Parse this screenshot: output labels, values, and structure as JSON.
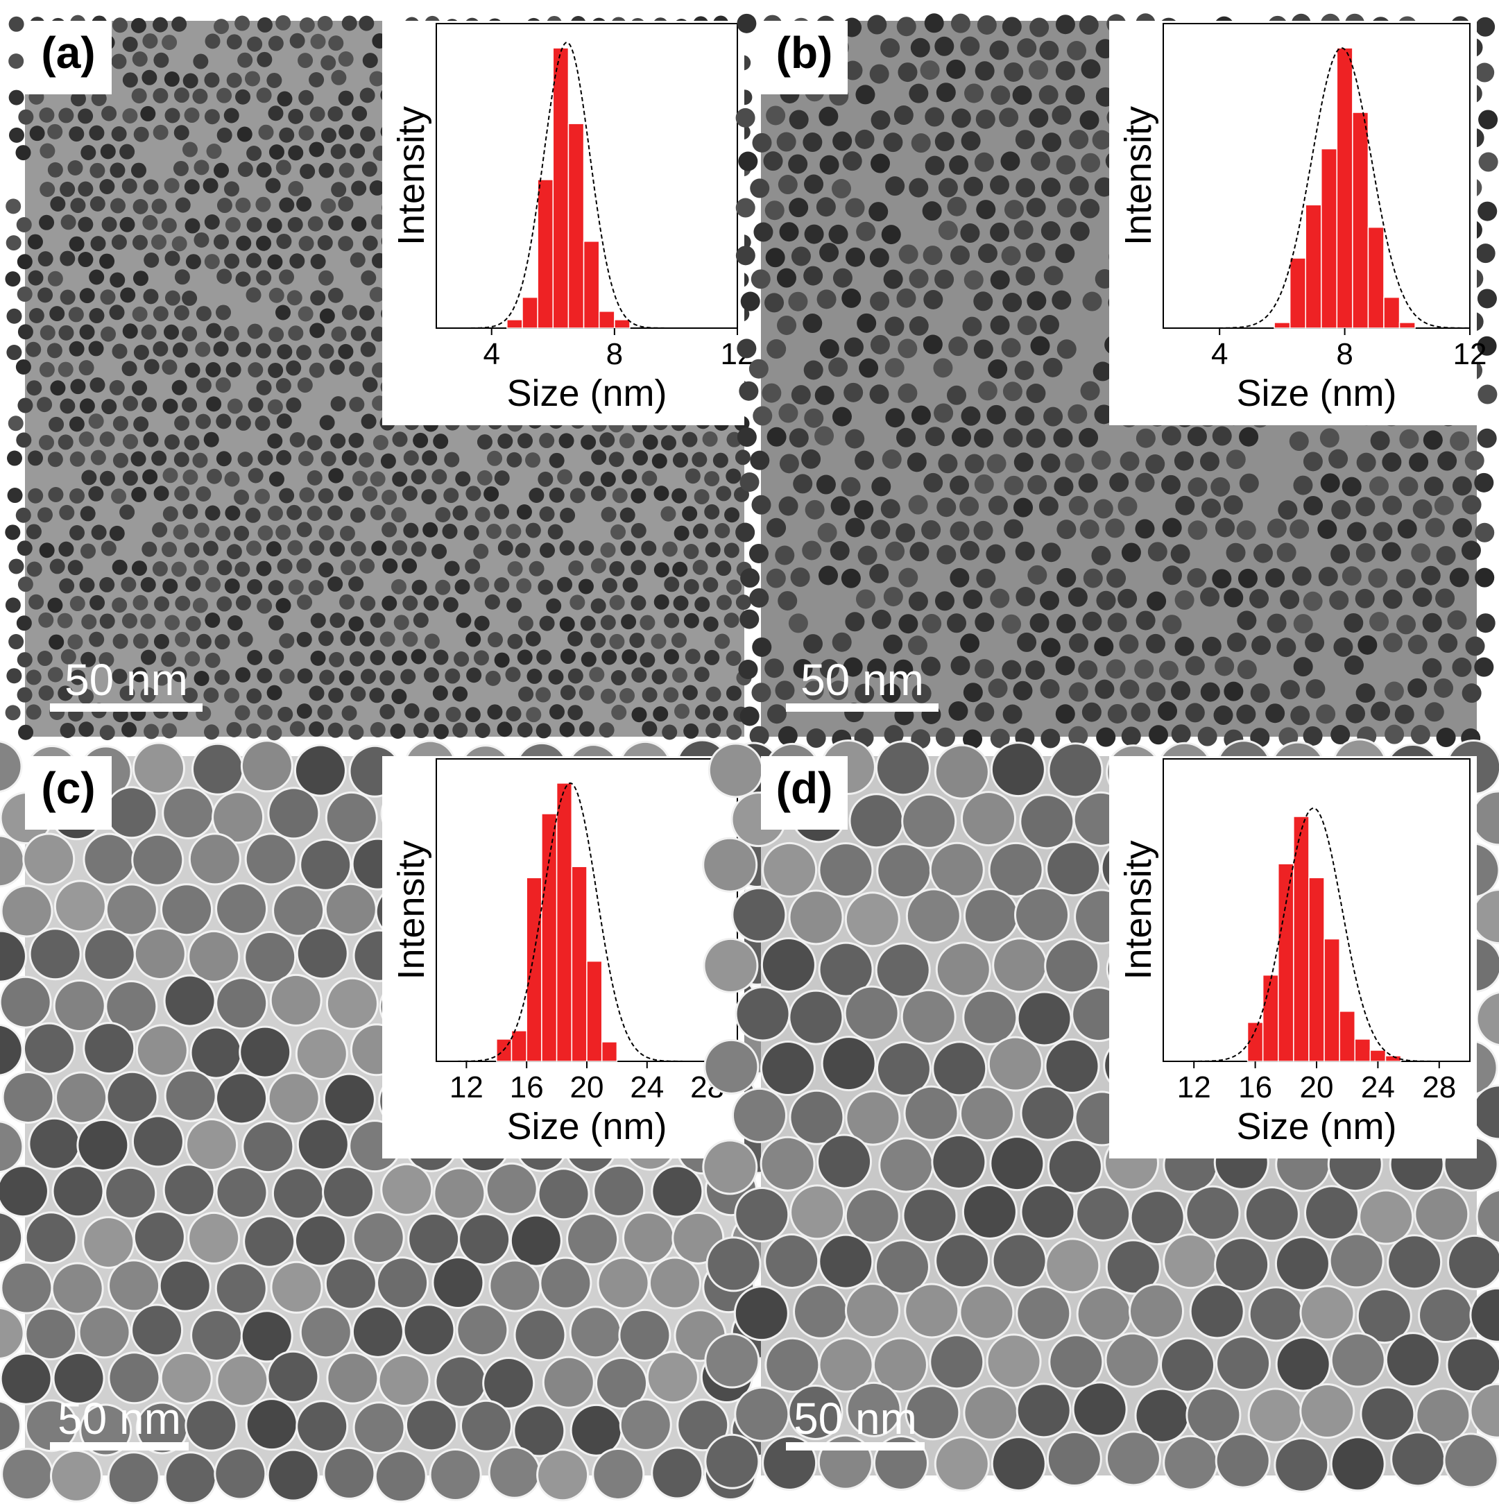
{
  "panels": [
    {
      "id": "a",
      "label": "(a)",
      "scale_bar": "50 nm",
      "inset": {
        "ylabel": "Intensity",
        "xlabel": "Size (nm)",
        "xticks": [
          "4",
          "8",
          "12"
        ],
        "xlim": [
          2.2,
          12
        ]
      }
    },
    {
      "id": "b",
      "label": "(b)",
      "scale_bar": "50 nm",
      "inset": {
        "ylabel": "Intensity",
        "xlabel": "Size (nm)",
        "xticks": [
          "4",
          "8",
          "12"
        ],
        "xlim": [
          2.2,
          12
        ]
      }
    },
    {
      "id": "c",
      "label": "(c)",
      "scale_bar": "50 nm",
      "inset": {
        "ylabel": "Intensity",
        "xlabel": "Size (nm)",
        "xticks": [
          "12",
          "16",
          "20",
          "24",
          "28"
        ],
        "xlim": [
          10,
          30
        ]
      }
    },
    {
      "id": "d",
      "label": "(d)",
      "scale_bar": "50 nm",
      "inset": {
        "ylabel": "Intensity",
        "xlabel": "Size (nm)",
        "xticks": [
          "12",
          "16",
          "20",
          "24",
          "28"
        ],
        "xlim": [
          10,
          30
        ]
      }
    }
  ],
  "colors": {
    "bar": "#ee2224",
    "fit_curve": "#000000",
    "scale_bar": "#ffffff"
  },
  "chart_data": [
    {
      "panel": "a",
      "type": "bar",
      "xlabel": "Size (nm)",
      "ylabel": "Intensity",
      "xlim": [
        2.2,
        12
      ],
      "bin_width": 0.5,
      "bin_centers": [
        4.75,
        5.25,
        5.75,
        6.25,
        6.75,
        7.25,
        7.75,
        8.25
      ],
      "values": [
        0.03,
        0.11,
        0.53,
        1.0,
        0.73,
        0.31,
        0.06,
        0.03
      ],
      "fit": {
        "type": "gaussian",
        "center": 6.45,
        "sigma": 0.75,
        "amplitude": 1.02
      }
    },
    {
      "panel": "b",
      "type": "bar",
      "xlabel": "Size (nm)",
      "ylabel": "Intensity",
      "xlim": [
        2.2,
        12
      ],
      "bin_width": 0.5,
      "bin_centers": [
        6.0,
        6.5,
        7.0,
        7.5,
        8.0,
        8.5,
        9.0,
        9.5,
        10.0
      ],
      "values": [
        0.02,
        0.25,
        0.44,
        0.64,
        1.0,
        0.77,
        0.36,
        0.11,
        0.02
      ],
      "fit": {
        "type": "gaussian",
        "center": 7.9,
        "sigma": 0.95,
        "amplitude": 1.0
      }
    },
    {
      "panel": "c",
      "type": "bar",
      "xlabel": "Size (nm)",
      "ylabel": "Intensity",
      "xlim": [
        10,
        30
      ],
      "bin_width": 1.0,
      "bin_centers": [
        14.5,
        15.5,
        16.5,
        17.5,
        18.5,
        19.5,
        20.5,
        21.5
      ],
      "values": [
        0.08,
        0.11,
        0.66,
        0.89,
        1.0,
        0.7,
        0.36,
        0.07
      ],
      "fit": {
        "type": "gaussian",
        "center": 18.9,
        "sigma": 1.75,
        "amplitude": 1.0
      }
    },
    {
      "panel": "d",
      "type": "bar",
      "xlabel": "Size (nm)",
      "ylabel": "Intensity",
      "xlim": [
        10,
        30
      ],
      "bin_width": 1.0,
      "bin_centers": [
        16.0,
        17.0,
        18.0,
        19.0,
        20.0,
        21.0,
        22.0,
        23.0,
        24.0,
        25.0
      ],
      "values": [
        0.14,
        0.31,
        0.71,
        0.88,
        0.66,
        0.44,
        0.18,
        0.08,
        0.04,
        0.02
      ],
      "fit": {
        "type": "gaussian",
        "center": 19.8,
        "sigma": 1.85,
        "amplitude": 0.91
      }
    }
  ]
}
